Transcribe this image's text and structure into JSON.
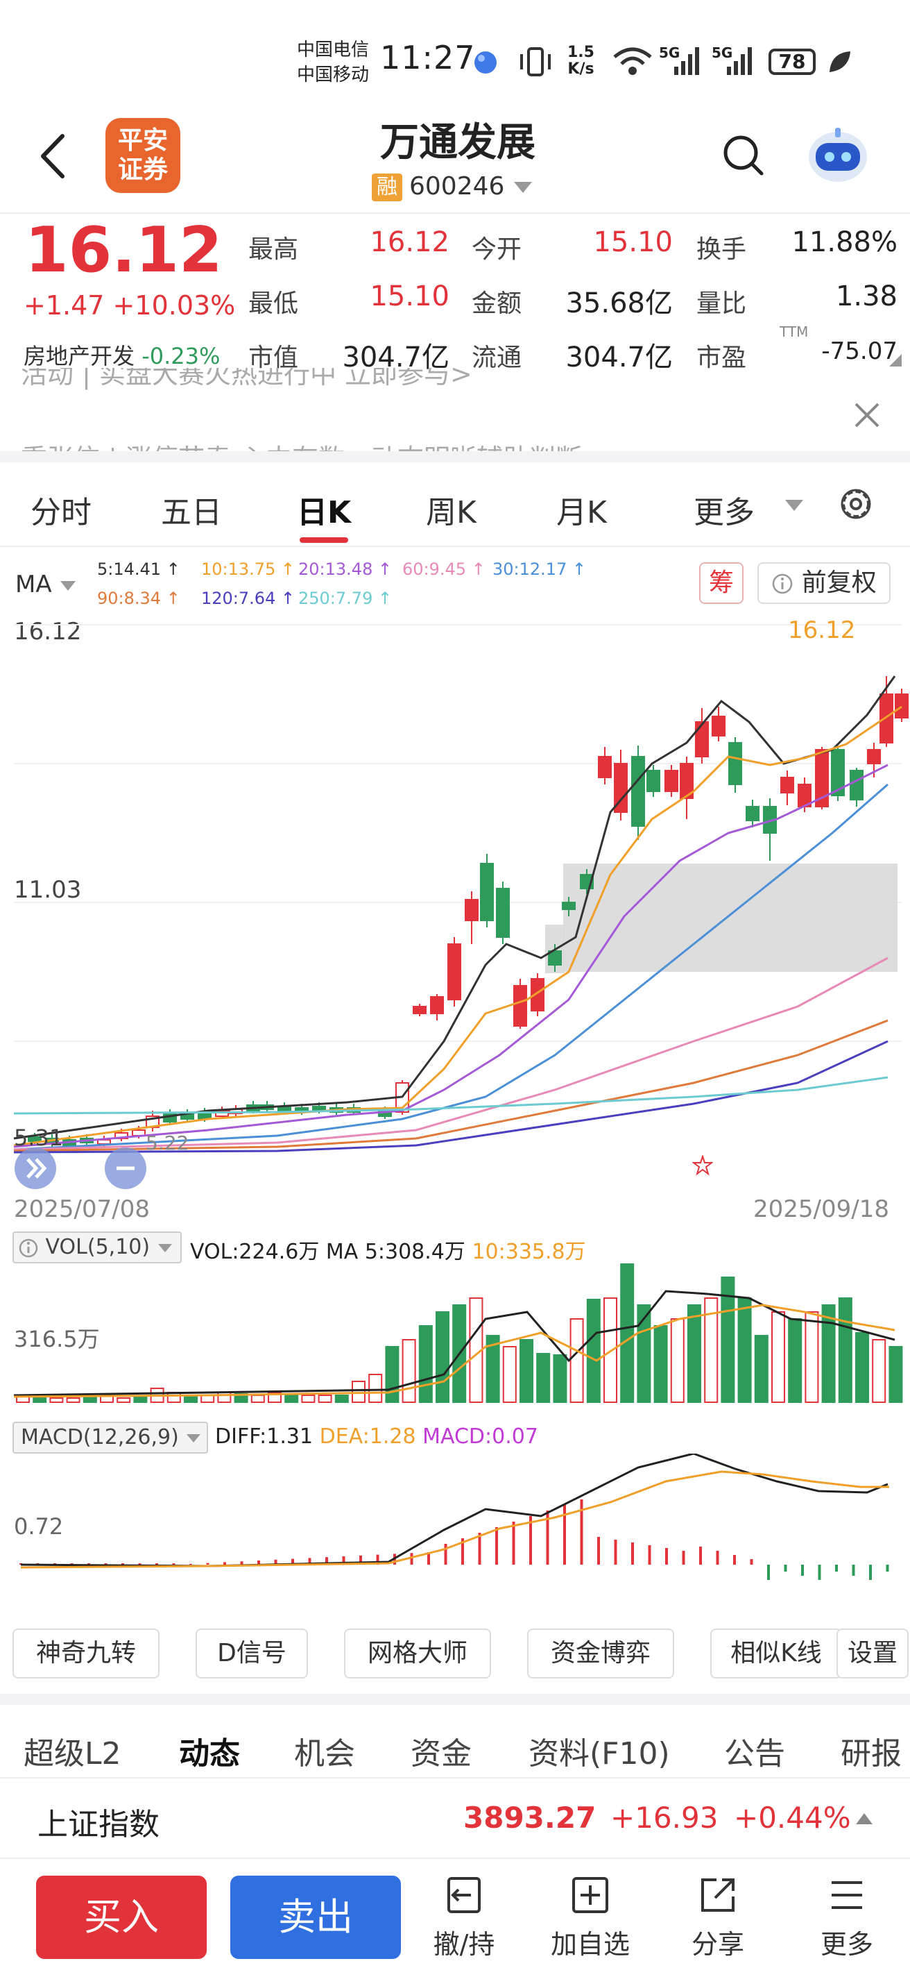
{
  "status_bar": {
    "carrier1": "中国电信",
    "carrier2": "中国移动",
    "time": "11:27",
    "net_speed_value": "1.5",
    "net_speed_unit": "K/s",
    "signal1": "5G",
    "signal2": "5G",
    "battery": "78"
  },
  "header": {
    "logo_line1": "平安",
    "logo_line2": "证券",
    "stock_name": "万通发展",
    "margin_badge": "融",
    "stock_code": "600246"
  },
  "quote": {
    "price": "16.12",
    "change": "+1.47",
    "change_pct": "+10.03%",
    "sector_name": "房地产开发",
    "sector_change": "-0.23%",
    "rows": [
      [
        {
          "label": "最高",
          "value": "16.12",
          "color": "red"
        },
        {
          "label": "今开",
          "value": "15.10",
          "color": "red"
        },
        {
          "label": "换手",
          "value": "11.88%",
          "color": "dark"
        }
      ],
      [
        {
          "label": "最低",
          "value": "15.10",
          "color": "red"
        },
        {
          "label": "金额",
          "value": "35.68亿",
          "color": "dark"
        },
        {
          "label": "量比",
          "value": "1.38",
          "color": "dark"
        }
      ],
      [
        {
          "label": "市值",
          "value": "304.7亿",
          "color": "dark"
        },
        {
          "label": "流通",
          "value": "304.7亿",
          "color": "dark"
        },
        {
          "label": "市盈",
          "value": "-75.07",
          "color": "dark"
        }
      ]
    ],
    "pe_suffix": "TTM"
  },
  "notice": {
    "line1": "活动 | 实盘大赛火热进行中 立即参与>",
    "line2": "重张信 | 涨停节奏 心中有数，动态明晰辅助判断"
  },
  "period_tabs": [
    "分时",
    "五日",
    "日K",
    "周K",
    "月K",
    "更多"
  ],
  "active_tab": "日K",
  "chart": {
    "ma_label": "MA",
    "ma_legend_row1": [
      {
        "text": "5:14.41",
        "color": "#333333"
      },
      {
        "text": "10:13.75",
        "color": "#f0a02a"
      },
      {
        "text": "20:13.48",
        "color": "#a45ad6"
      },
      {
        "text": "60:9.45",
        "color": "#e88ab8"
      },
      {
        "text": "30:12.17",
        "color": "#4a8fd8"
      }
    ],
    "ma_legend_row2": [
      {
        "text": "90:8.34",
        "color": "#e07a3a"
      },
      {
        "text": "120:7.64",
        "color": "#4a3fbf"
      },
      {
        "text": "250:7.79",
        "color": "#6ccbd0"
      }
    ],
    "chip_label": "筹",
    "restore_label": "前复权",
    "high_label": "16.12",
    "mid_label": "11.03",
    "low_label": "5.31",
    "latest_tag": "16.12",
    "low_tag": "5.22",
    "start_date": "2025/07/08",
    "end_date": "2025/09/18"
  },
  "volume": {
    "indicator": "VOL(5,10)",
    "vol": "VOL:224.6万",
    "ma5": "MA 5:308.4万",
    "ma10": "10:335.8万",
    "axis_label": "316.5万"
  },
  "macd": {
    "indicator": "MACD(12,26,9)",
    "diff": "DIFF:1.31",
    "dea": "DEA:1.28",
    "macd": "MACD:0.07",
    "axis_label": "0.72"
  },
  "tool_buttons": [
    "神奇九转",
    "D信号",
    "网格大师",
    "资金博弈",
    "相似K线",
    "设置"
  ],
  "sub_tabs": [
    "超级L2",
    "动态",
    "机会",
    "资金",
    "资料(F10)",
    "公告",
    "研报"
  ],
  "active_sub_tab": "动态",
  "index": {
    "name": "上证指数",
    "value": "3893.27",
    "change": "+16.93",
    "change_pct": "+0.44%"
  },
  "bottom_bar": {
    "buy": "买入",
    "sell": "卖出",
    "actions": [
      "撤/持",
      "加自选",
      "分享",
      "更多"
    ]
  }
}
